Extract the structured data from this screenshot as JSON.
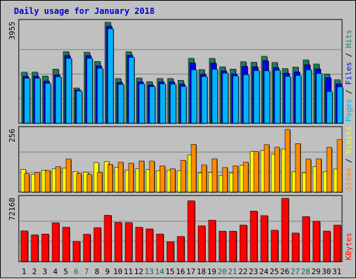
{
  "chart_data": {
    "type": "bar",
    "title": "Daily usage for January 2018",
    "categories": [
      "1",
      "2",
      "3",
      "4",
      "5",
      "6",
      "7",
      "8",
      "9",
      "10",
      "11",
      "12",
      "13",
      "14",
      "15",
      "16",
      "17",
      "18",
      "19",
      "20",
      "21",
      "22",
      "23",
      "24",
      "25",
      "26",
      "27",
      "28",
      "29",
      "30",
      "31"
    ],
    "weekend_days": [
      "6",
      "7",
      "13",
      "14",
      "20",
      "21",
      "27",
      "28"
    ],
    "panels": [
      {
        "id": "requests",
        "ymax_label": "3955",
        "ymax": 3955,
        "ylabel_parts": [
          "Pages",
          "Files",
          "Hits"
        ],
        "series": [
          {
            "name": "Hits",
            "color": "#1f7a5c",
            "values": [
              2000,
              2000,
              1850,
              2120,
              2800,
              1380,
              2780,
              2420,
              3955,
              1750,
              2800,
              1770,
              1630,
              1750,
              1750,
              1680,
              2540,
              2100,
              2540,
              2210,
              2120,
              2410,
              2390,
              2620,
              2380,
              2140,
              2200,
              2480,
              2320,
              1930,
              1700
            ]
          },
          {
            "name": "Files",
            "color": "#0000ee",
            "values": [
              1840,
              1840,
              1650,
              1900,
              2650,
              1300,
              2650,
              2250,
              3800,
              1600,
              2660,
              1620,
              1500,
              1620,
              1620,
              1530,
              2360,
              1920,
              2360,
              2050,
              1930,
              2230,
              2210,
              2450,
              2180,
              1960,
              2010,
              2290,
              2130,
              1780,
              1540
            ]
          },
          {
            "name": "Pages",
            "color": "#00b4ff",
            "values": [
              1760,
              1760,
              1560,
              1820,
              2540,
              1260,
              2540,
              2150,
              3700,
              1520,
              2580,
              1540,
              1430,
              1540,
              1530,
              1440,
              2090,
              1830,
              2110,
              1960,
              1850,
              1900,
              2060,
              2050,
              2070,
              1830,
              1870,
              2090,
              1950,
              1240,
              1420
            ]
          }
        ]
      },
      {
        "id": "visitors",
        "ymax_label": "256",
        "ymax": 256,
        "ylabel_parts": [
          "Sites",
          "Visits"
        ],
        "series": [
          {
            "name": "Visits",
            "color": "#ffff00",
            "values": [
              92,
              72,
              90,
              95,
              98,
              83,
              81,
              120,
              124,
              101,
              90,
              95,
              92,
              87,
              90,
              87,
              151,
              78,
              80,
              68,
              78,
              110,
              166,
              170,
              155,
              176,
              83,
              79,
              104,
              83,
              94
            ]
          },
          {
            "name": "Sites",
            "color": "#ff8c00",
            "values": [
              75,
              80,
              88,
              104,
              135,
              75,
              72,
              80,
              113,
              122,
              118,
              127,
              126,
              107,
              95,
              130,
              195,
              111,
              136,
              100,
              107,
              122,
              166,
              194,
              183,
              256,
              198,
              135,
              136,
              183,
              214
            ]
          }
        ]
      },
      {
        "id": "kbytes",
        "ymax_label": "72168",
        "ymax": 72168,
        "ylabel_parts": [
          "KBytes"
        ],
        "series": [
          {
            "name": "KBytes",
            "color": "#ff0000",
            "values": [
              35000,
              30500,
              31500,
              44300,
              39200,
              23100,
              31200,
              38700,
              52800,
              44800,
              44500,
              39200,
              37300,
              31500,
              22400,
              28700,
              69300,
              40800,
              47200,
              34800,
              34700,
              41600,
              57600,
              52400,
              35800,
              72168,
              32600,
              51300,
              46000,
              34800,
              41600
            ]
          }
        ]
      }
    ]
  }
}
